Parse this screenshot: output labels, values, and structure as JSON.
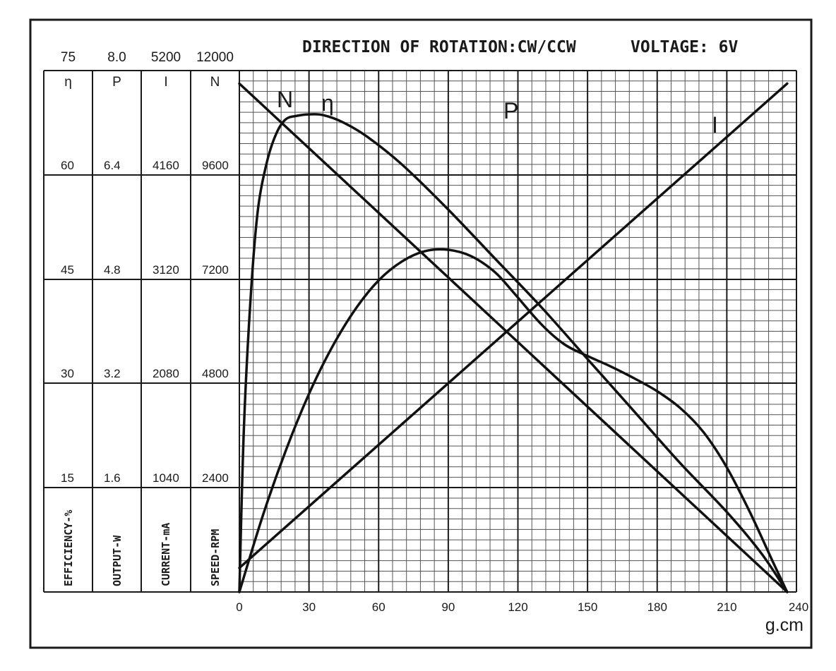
{
  "title": "DIRECTION OF ROTATION:CW/CCW",
  "voltage": "VOLTAGE: 6V",
  "chart_data": {
    "type": "line",
    "xlabel": "g.cm",
    "xlim": [
      0,
      240
    ],
    "x_ticks": [
      "0",
      "30",
      "60",
      "90",
      "120",
      "150",
      "180",
      "210",
      "240"
    ],
    "grid": true,
    "axes": [
      {
        "symbol": "η",
        "name": "EFFICIENCY-%",
        "top": "75",
        "ticks": [
          "60",
          "45",
          "30",
          "15"
        ],
        "max": 75
      },
      {
        "symbol": "P",
        "name": "OUTPUT-W",
        "top": "8.0",
        "ticks": [
          "6.4",
          "4.8",
          "3.2",
          "1.6"
        ],
        "max": 8.0
      },
      {
        "symbol": "I",
        "name": "CURRENT-mA",
        "top": "5200",
        "ticks": [
          "4160",
          "3120",
          "2080",
          "1040"
        ],
        "max": 5200
      },
      {
        "symbol": "N",
        "name": "SPEED-RPM",
        "top": "12000",
        "ticks": [
          "9600",
          "7200",
          "4800",
          "2400"
        ],
        "max": 12000
      }
    ],
    "series": [
      {
        "name": "N",
        "axis": "N",
        "x": [
          0,
          236
        ],
        "y": [
          11700,
          0
        ]
      },
      {
        "name": "I",
        "axis": "I",
        "x": [
          0,
          236
        ],
        "y": [
          240,
          5070
        ]
      },
      {
        "name": "P",
        "axis": "P",
        "x": [
          0,
          10,
          20,
          30,
          40,
          50,
          60,
          70,
          80,
          90,
          100,
          110,
          118,
          130,
          140,
          150,
          160,
          170,
          180,
          190,
          200,
          210,
          220,
          230,
          236
        ],
        "y": [
          0,
          1.16,
          2.17,
          3.04,
          3.76,
          4.34,
          4.78,
          5.07,
          5.23,
          5.25,
          5.15,
          4.91,
          4.6,
          4.11,
          3.8,
          3.62,
          3.46,
          3.28,
          3.08,
          2.82,
          2.45,
          1.91,
          1.22,
          0.45,
          0
        ]
      },
      {
        "name": "η",
        "axis": "η",
        "x": [
          0,
          2,
          5,
          8,
          12,
          16,
          20,
          25,
          30,
          36,
          45,
          55,
          70,
          90,
          110,
          130,
          150,
          170,
          190,
          210,
          225,
          236
        ],
        "y": [
          0,
          24,
          43,
          55,
          62,
          66,
          68,
          68.5,
          68.7,
          68.6,
          67.5,
          65.5,
          61.5,
          55,
          48,
          41,
          33.5,
          26,
          18.5,
          11.5,
          5.5,
          0
        ]
      }
    ],
    "labels": {
      "N": "N",
      "η": "η",
      "P": "P",
      "I": "I"
    }
  }
}
